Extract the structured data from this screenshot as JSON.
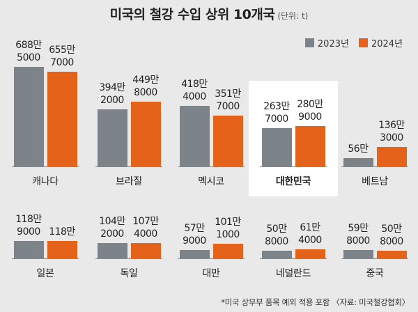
{
  "title": "미국의 철강 수입 상위 10개국",
  "unit": "(단위: t)",
  "legend": [
    {
      "label": "2023년",
      "color": "#7c8489"
    },
    {
      "label": "2024년",
      "color": "#e5621b"
    }
  ],
  "footnote": "*미국 상무부 품목 예외 적용 포함 〈자료: 미국철강협회〉",
  "chart_data": {
    "type": "bar",
    "title": "미국의 철강 수입 상위 10개국",
    "unit": "t",
    "categories": [
      "캐나다",
      "브라질",
      "멕시코",
      "대한민국",
      "베트남",
      "일본",
      "독일",
      "대만",
      "네덜란드",
      "중국"
    ],
    "series": [
      {
        "name": "2023년",
        "values": [
          6885000,
          3942000,
          4184000,
          2637000,
          560000,
          1189000,
          1042000,
          579000,
          508000,
          598000
        ]
      },
      {
        "name": "2024년",
        "values": [
          6557000,
          4498000,
          3517000,
          2809000,
          1363000,
          1180000,
          1074000,
          1011000,
          614000,
          508000
        ]
      }
    ],
    "labels": [
      [
        "688만\n5000",
        "655만\n7000"
      ],
      [
        "394만\n2000",
        "449만\n8000"
      ],
      [
        "418만\n4000",
        "351만\n7000"
      ],
      [
        "263만\n7000",
        "280만\n9000"
      ],
      [
        "56만",
        "136만\n3000"
      ],
      [
        "118만\n9000",
        "118만"
      ],
      [
        "104만\n2000",
        "107만\n4000"
      ],
      [
        "57만\n9000",
        "101만\n1000"
      ],
      [
        "50만\n8000",
        "61만\n4000"
      ],
      [
        "59만\n8000",
        "50만\n8000"
      ]
    ],
    "highlight": "대한민국",
    "legend_position": "top-right"
  }
}
